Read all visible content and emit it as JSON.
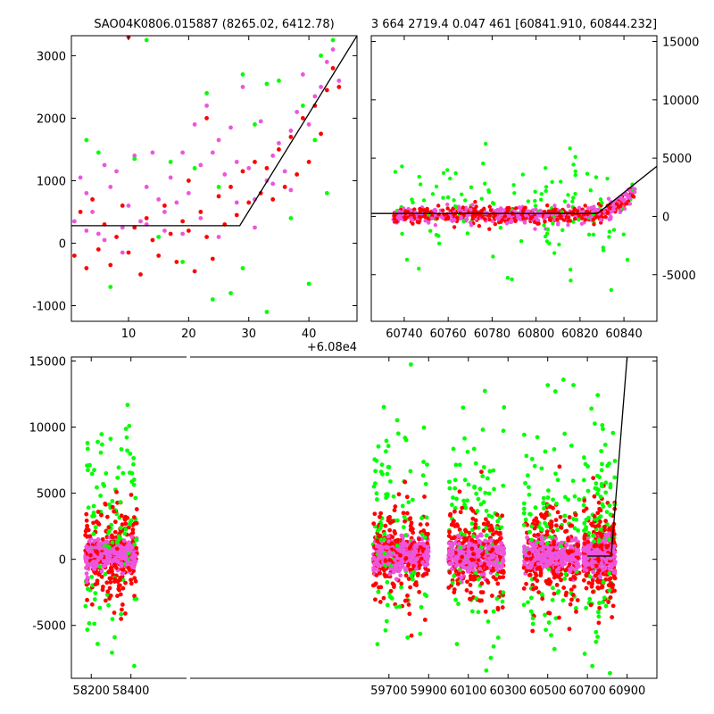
{
  "chart_data": [
    {
      "type": "scatter",
      "title": "SAO04K0806.015887 (8265.02, 6412.78)",
      "xlim": [
        0.5,
        48
      ],
      "ylim": [
        -1250,
        3320
      ],
      "x_ticks": [
        10,
        20,
        30,
        40
      ],
      "y_ticks": [
        -1000,
        0,
        1000,
        2000,
        3000
      ],
      "x_offset_label": "+6.08e4",
      "colors": {
        "magenta": "#ee55dd",
        "red": "#ff0000",
        "green": "#00ff00",
        "line": "#000000"
      },
      "series": [
        {
          "color": "magenta",
          "points": [
            [
              1,
              350
            ],
            [
              2,
              1050
            ],
            [
              3,
              800
            ],
            [
              4,
              500
            ],
            [
              5,
              150
            ],
            [
              6,
              1250
            ],
            [
              7,
              900
            ],
            [
              8,
              1150
            ],
            [
              9,
              250
            ],
            [
              10,
              600
            ],
            [
              11,
              1400
            ],
            [
              12,
              350
            ],
            [
              13,
              900
            ],
            [
              14,
              1450
            ],
            [
              15,
              700
            ],
            [
              16,
              200
            ],
            [
              17,
              1050
            ],
            [
              18,
              650
            ],
            [
              19,
              1450
            ],
            [
              20,
              800
            ],
            [
              21,
              1900
            ],
            [
              22,
              1250
            ],
            [
              23,
              2200
            ],
            [
              24,
              1450
            ],
            [
              25,
              1650
            ],
            [
              26,
              1100
            ],
            [
              27,
              1850
            ],
            [
              28,
              1300
            ],
            [
              29,
              2500
            ],
            [
              30,
              1200
            ],
            [
              31,
              700
            ],
            [
              32,
              1950
            ],
            [
              33,
              1000
            ],
            [
              34,
              1400
            ],
            [
              35,
              1600
            ],
            [
              36,
              1150
            ],
            [
              37,
              1800
            ],
            [
              38,
              2100
            ],
            [
              39,
              2700
            ],
            [
              40,
              1900
            ],
            [
              41,
              2350
            ],
            [
              42,
              2500
            ],
            [
              43,
              2900
            ],
            [
              44,
              3100
            ],
            [
              45,
              2600
            ],
            [
              3,
              200
            ],
            [
              6,
              50
            ],
            [
              9,
              -150
            ],
            [
              13,
              300
            ],
            [
              16,
              500
            ],
            [
              19,
              150
            ],
            [
              22,
              400
            ],
            [
              25,
              100
            ],
            [
              28,
              650
            ],
            [
              31,
              250
            ],
            [
              34,
              950
            ],
            [
              37,
              850
            ]
          ]
        },
        {
          "color": "red",
          "points": [
            [
              1,
              -200
            ],
            [
              2,
              500
            ],
            [
              3,
              -400
            ],
            [
              4,
              700
            ],
            [
              5,
              -100
            ],
            [
              6,
              300
            ],
            [
              7,
              -350
            ],
            [
              8,
              100
            ],
            [
              9,
              600
            ],
            [
              10,
              -150
            ],
            [
              11,
              250
            ],
            [
              12,
              -500
            ],
            [
              13,
              400
            ],
            [
              14,
              50
            ],
            [
              15,
              -200
            ],
            [
              16,
              600
            ],
            [
              17,
              150
            ],
            [
              18,
              -300
            ],
            [
              19,
              350
            ],
            [
              20,
              200
            ],
            [
              21,
              -450
            ],
            [
              22,
              500
            ],
            [
              23,
              100
            ],
            [
              24,
              -250
            ],
            [
              25,
              750
            ],
            [
              26,
              300
            ],
            [
              27,
              900
            ],
            [
              28,
              450
            ],
            [
              29,
              1150
            ],
            [
              30,
              650
            ],
            [
              31,
              1300
            ],
            [
              32,
              800
            ],
            [
              33,
              1200
            ],
            [
              34,
              700
            ],
            [
              35,
              1500
            ],
            [
              36,
              900
            ],
            [
              37,
              1700
            ],
            [
              38,
              1100
            ],
            [
              39,
              2000
            ],
            [
              40,
              1300
            ],
            [
              41,
              2200
            ],
            [
              42,
              1750
            ],
            [
              43,
              2450
            ],
            [
              44,
              2800
            ],
            [
              45,
              2500
            ],
            [
              10,
              3300
            ],
            [
              20,
              1000
            ],
            [
              23,
              2000
            ]
          ]
        },
        {
          "color": "green",
          "points": [
            [
              3,
              1650
            ],
            [
              5,
              1450
            ],
            [
              7,
              -700
            ],
            [
              11,
              1350
            ],
            [
              13,
              3250
            ],
            [
              15,
              100
            ],
            [
              17,
              1300
            ],
            [
              19,
              -300
            ],
            [
              21,
              1200
            ],
            [
              23,
              2400
            ],
            [
              25,
              900
            ],
            [
              27,
              -800
            ],
            [
              29,
              2700
            ],
            [
              31,
              1900
            ],
            [
              33,
              -1100
            ],
            [
              35,
              2600
            ],
            [
              37,
              400
            ],
            [
              39,
              2200
            ],
            [
              40,
              -650
            ],
            [
              41,
              1650
            ],
            [
              43,
              800
            ],
            [
              44,
              3250
            ],
            [
              42,
              3000
            ],
            [
              33,
              2550
            ],
            [
              29,
              -400
            ],
            [
              24,
              -900
            ]
          ]
        },
        {
          "color": "line",
          "line": true,
          "points": [
            [
              0.5,
              280
            ],
            [
              28.5,
              280
            ],
            [
              48,
              3320
            ]
          ]
        }
      ]
    },
    {
      "type": "scatter",
      "title": "3 664 2719.4 0.047 461 [60841.910, 60844.232]",
      "xlim": [
        60725,
        60855
      ],
      "ylim": [
        -9000,
        15500
      ],
      "x_ticks": [
        60740,
        60760,
        60780,
        60800,
        60820,
        60840
      ],
      "y_ticks": [
        -5000,
        0,
        5000,
        10000,
        15000
      ],
      "y_axis_side": "right",
      "colors": {
        "magenta": "#ee55dd",
        "red": "#ff0000",
        "green": "#00ff00",
        "line": "#000000"
      },
      "series": [
        {
          "color": "line",
          "line": true,
          "points": [
            [
              60725,
              250
            ],
            [
              60828,
              250
            ],
            [
              60855,
              4300
            ]
          ]
        }
      ]
    },
    {
      "type": "scatter",
      "xlim": [
        58100,
        61050
      ],
      "ylim": [
        -9000,
        15300
      ],
      "x_ticks": [
        58200,
        58400,
        59700,
        59900,
        60100,
        60300,
        60500,
        60700,
        60900
      ],
      "y_ticks": [
        -5000,
        0,
        5000,
        10000,
        15000
      ],
      "broken_x_axis": true,
      "clusters": [
        {
          "center": 58300,
          "half_width": 130
        },
        {
          "center": 59760,
          "half_width": 140
        },
        {
          "center": 60140,
          "half_width": 140
        },
        {
          "center": 60520,
          "half_width": 140
        },
        {
          "center": 60760,
          "half_width": 80
        }
      ],
      "colors": {
        "magenta": "#ee55dd",
        "red": "#ff0000",
        "green": "#00ff00",
        "line": "#000000"
      },
      "series": [
        {
          "color": "line",
          "line": true,
          "points": [
            [
              60700,
              250
            ],
            [
              60820,
              250
            ],
            [
              60900,
              15300
            ]
          ]
        }
      ]
    }
  ]
}
